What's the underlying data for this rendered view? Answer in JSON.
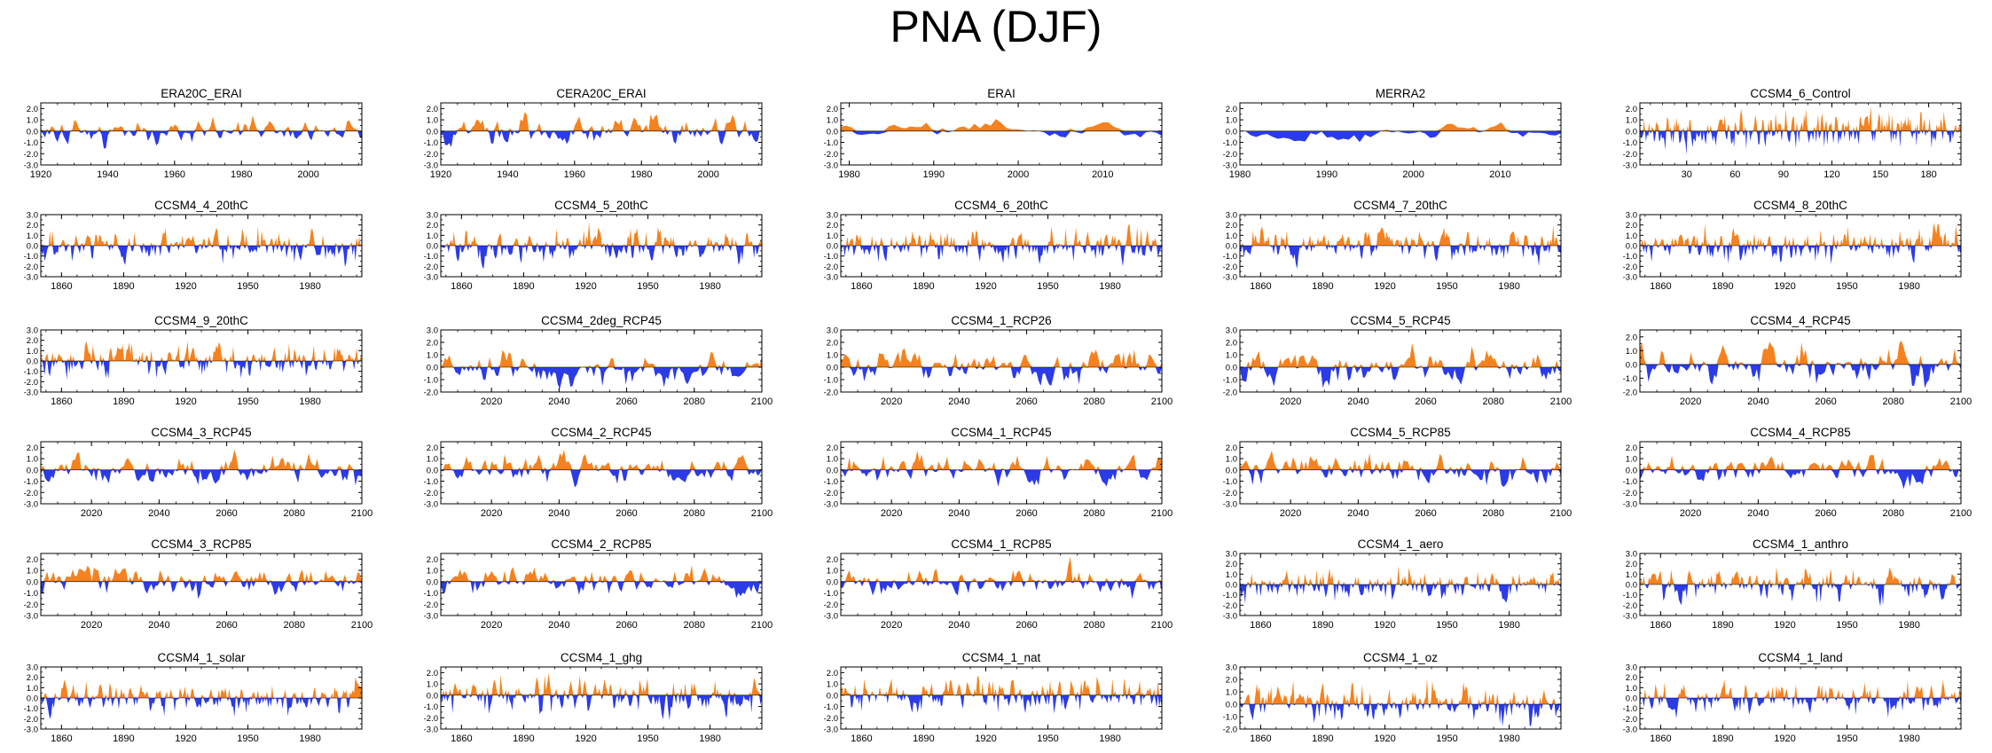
{
  "title": "PNA (DJF)",
  "colors": {
    "positive": "#f5821f",
    "negative": "#2b3be6",
    "axis": "#000000"
  },
  "chart_data": [
    {
      "type": "area",
      "title": "ERA20C_ERAI",
      "xlim": [
        1920,
        2016
      ],
      "xticks": [
        "1920",
        "1940",
        "1960",
        "1980",
        "2000"
      ],
      "yticks": [
        "2.0",
        "1.0",
        "0.0",
        "-1.0",
        "-2.0",
        "-3.0"
      ],
      "ylim": [
        -3,
        2.5
      ],
      "seed": 11,
      "amp": 1.0,
      "smooth": 0.55
    },
    {
      "type": "area",
      "title": "CERA20C_ERAI",
      "xlim": [
        1920,
        2016
      ],
      "xticks": [
        "1920",
        "1940",
        "1960",
        "1980",
        "2000"
      ],
      "yticks": [
        "2.0",
        "1.0",
        "0.0",
        "-1.0",
        "-2.0",
        "-3.0"
      ],
      "ylim": [
        -3,
        2.5
      ],
      "seed": 12,
      "amp": 1.0,
      "smooth": 0.55
    },
    {
      "type": "area",
      "title": "ERAI",
      "xlim": [
        1979,
        2017
      ],
      "xticks": [
        "1980",
        "1990",
        "2000",
        "2010"
      ],
      "yticks": [
        "2.0",
        "1.0",
        "0.0",
        "-1.0",
        "-2.0",
        "-3.0"
      ],
      "ylim": [
        -3,
        2.5
      ],
      "seed": 13,
      "amp": 1.1,
      "smooth": 0.75
    },
    {
      "type": "area",
      "title": "MERRA2",
      "xlim": [
        1980,
        2017
      ],
      "xticks": [
        "1980",
        "1990",
        "2000",
        "2010"
      ],
      "yticks": [
        "2.0",
        "1.0",
        "0.0",
        "-1.0",
        "-2.0",
        "-3.0"
      ],
      "ylim": [
        -3,
        2.5
      ],
      "seed": 14,
      "amp": 1.1,
      "smooth": 0.75
    },
    {
      "type": "area",
      "title": "CCSM4_6_Control",
      "xlim": [
        1,
        200
      ],
      "xticks": [
        "30",
        "60",
        "90",
        "120",
        "150",
        "180"
      ],
      "yticks": [
        "2.0",
        "1.0",
        "0.0",
        "-1.0",
        "-2.0",
        "-3.0"
      ],
      "ylim": [
        -3,
        2.5
      ],
      "seed": 15,
      "amp": 1.0,
      "smooth": 0.3
    },
    {
      "type": "area",
      "title": "CCSM4_4_20thC",
      "xlim": [
        1850,
        2005
      ],
      "xticks": [
        "1860",
        "1890",
        "1920",
        "1950",
        "1980"
      ],
      "yticks": [
        "3.0",
        "2.0",
        "1.0",
        "0.0",
        "-1.0",
        "-2.0",
        "-3.0"
      ],
      "ylim": [
        -3,
        3
      ],
      "seed": 21,
      "amp": 1.0,
      "smooth": 0.35
    },
    {
      "type": "area",
      "title": "CCSM4_5_20thC",
      "xlim": [
        1850,
        2005
      ],
      "xticks": [
        "1860",
        "1890",
        "1920",
        "1950",
        "1980"
      ],
      "yticks": [
        "3.0",
        "2.0",
        "1.0",
        "0.0",
        "-1.0",
        "-2.0",
        "-3.0"
      ],
      "ylim": [
        -3,
        3
      ],
      "seed": 22,
      "amp": 1.0,
      "smooth": 0.35
    },
    {
      "type": "area",
      "title": "CCSM4_6_20thC",
      "xlim": [
        1850,
        2005
      ],
      "xticks": [
        "1860",
        "1890",
        "1920",
        "1950",
        "1980"
      ],
      "yticks": [
        "3.0",
        "2.0",
        "1.0",
        "0.0",
        "-1.0",
        "-2.0",
        "-3.0"
      ],
      "ylim": [
        -3,
        3
      ],
      "seed": 23,
      "amp": 1.1,
      "smooth": 0.35
    },
    {
      "type": "area",
      "title": "CCSM4_7_20thC",
      "xlim": [
        1850,
        2005
      ],
      "xticks": [
        "1860",
        "1890",
        "1920",
        "1950",
        "1980"
      ],
      "yticks": [
        "3.0",
        "2.0",
        "1.0",
        "0.0",
        "-1.0",
        "-2.0",
        "-3.0"
      ],
      "ylim": [
        -3,
        3
      ],
      "seed": 24,
      "amp": 1.0,
      "smooth": 0.35
    },
    {
      "type": "area",
      "title": "CCSM4_8_20thC",
      "xlim": [
        1850,
        2005
      ],
      "xticks": [
        "1860",
        "1890",
        "1920",
        "1950",
        "1980"
      ],
      "yticks": [
        "3.0",
        "2.0",
        "1.0",
        "0.0",
        "-1.0",
        "-2.0",
        "-3.0"
      ],
      "ylim": [
        -3,
        3
      ],
      "seed": 25,
      "amp": 1.0,
      "smooth": 0.35
    },
    {
      "type": "area",
      "title": "CCSM4_9_20thC",
      "xlim": [
        1850,
        2005
      ],
      "xticks": [
        "1860",
        "1890",
        "1920",
        "1950",
        "1980"
      ],
      "yticks": [
        "3.0",
        "2.0",
        "1.0",
        "0.0",
        "-1.0",
        "-2.0",
        "-3.0"
      ],
      "ylim": [
        -3,
        3
      ],
      "seed": 31,
      "amp": 1.0,
      "smooth": 0.35
    },
    {
      "type": "area",
      "title": "CCSM4_2deg_RCP45",
      "xlim": [
        2005,
        2100
      ],
      "xticks": [
        "2020",
        "2040",
        "2060",
        "2080",
        "2100"
      ],
      "yticks": [
        "3.0",
        "2.0",
        "1.0",
        "0.0",
        "-1.0",
        "-2.0"
      ],
      "ylim": [
        -2,
        3
      ],
      "seed": 32,
      "amp": 1.0,
      "smooth": 0.5
    },
    {
      "type": "area",
      "title": "CCSM4_1_RCP26",
      "xlim": [
        2005,
        2100
      ],
      "xticks": [
        "2020",
        "2040",
        "2060",
        "2080",
        "2100"
      ],
      "yticks": [
        "3.0",
        "2.0",
        "1.0",
        "0.0",
        "-1.0",
        "-2.0"
      ],
      "ylim": [
        -2,
        3
      ],
      "seed": 33,
      "amp": 1.0,
      "smooth": 0.5
    },
    {
      "type": "area",
      "title": "CCSM4_5_RCP45",
      "xlim": [
        2005,
        2100
      ],
      "xticks": [
        "2020",
        "2040",
        "2060",
        "2080",
        "2100"
      ],
      "yticks": [
        "3.0",
        "2.0",
        "1.0",
        "0.0",
        "-1.0",
        "-2.0"
      ],
      "ylim": [
        -2,
        3
      ],
      "seed": 34,
      "amp": 1.0,
      "smooth": 0.5
    },
    {
      "type": "area",
      "title": "CCSM4_4_RCP45",
      "xlim": [
        2005,
        2100
      ],
      "xticks": [
        "2020",
        "2040",
        "2060",
        "2080",
        "2100"
      ],
      "yticks": [
        "2.0",
        "1.0",
        "0.0",
        "-1.0",
        "-2.0"
      ],
      "ylim": [
        -2,
        2.5
      ],
      "seed": 35,
      "amp": 1.0,
      "smooth": 0.5
    },
    {
      "type": "area",
      "title": "CCSM4_3_RCP45",
      "xlim": [
        2005,
        2100
      ],
      "xticks": [
        "2020",
        "2040",
        "2060",
        "2080",
        "2100"
      ],
      "yticks": [
        "2.0",
        "1.0",
        "0.0",
        "-1.0",
        "-2.0",
        "-3.0"
      ],
      "ylim": [
        -3,
        2.5
      ],
      "seed": 41,
      "amp": 1.0,
      "smooth": 0.5
    },
    {
      "type": "area",
      "title": "CCSM4_2_RCP45",
      "xlim": [
        2005,
        2100
      ],
      "xticks": [
        "2020",
        "2040",
        "2060",
        "2080",
        "2100"
      ],
      "yticks": [
        "2.0",
        "1.0",
        "0.0",
        "-1.0",
        "-2.0",
        "-3.0"
      ],
      "ylim": [
        -3,
        2.5
      ],
      "seed": 42,
      "amp": 1.0,
      "smooth": 0.5
    },
    {
      "type": "area",
      "title": "CCSM4_1_RCP45",
      "xlim": [
        2005,
        2100
      ],
      "xticks": [
        "2020",
        "2040",
        "2060",
        "2080",
        "2100"
      ],
      "yticks": [
        "2.0",
        "1.0",
        "0.0",
        "-1.0",
        "-2.0",
        "-3.0"
      ],
      "ylim": [
        -3,
        2.5
      ],
      "seed": 43,
      "amp": 1.0,
      "smooth": 0.5
    },
    {
      "type": "area",
      "title": "CCSM4_5_RCP85",
      "xlim": [
        2005,
        2100
      ],
      "xticks": [
        "2020",
        "2040",
        "2060",
        "2080",
        "2100"
      ],
      "yticks": [
        "2.0",
        "1.0",
        "0.0",
        "-1.0",
        "-2.0",
        "-3.0"
      ],
      "ylim": [
        -3,
        2.5
      ],
      "seed": 44,
      "amp": 1.1,
      "smooth": 0.5
    },
    {
      "type": "area",
      "title": "CCSM4_4_RCP85",
      "xlim": [
        2005,
        2100
      ],
      "xticks": [
        "2020",
        "2040",
        "2060",
        "2080",
        "2100"
      ],
      "yticks": [
        "2.0",
        "1.0",
        "0.0",
        "-1.0",
        "-2.0",
        "-3.0"
      ],
      "ylim": [
        -3,
        2.5
      ],
      "seed": 45,
      "amp": 1.0,
      "smooth": 0.5
    },
    {
      "type": "area",
      "title": "CCSM4_3_RCP85",
      "xlim": [
        2005,
        2100
      ],
      "xticks": [
        "2020",
        "2040",
        "2060",
        "2080",
        "2100"
      ],
      "yticks": [
        "2.0",
        "1.0",
        "0.0",
        "-1.0",
        "-2.0",
        "-3.0"
      ],
      "ylim": [
        -3,
        2.5
      ],
      "seed": 51,
      "amp": 1.0,
      "smooth": 0.5
    },
    {
      "type": "area",
      "title": "CCSM4_2_RCP85",
      "xlim": [
        2005,
        2100
      ],
      "xticks": [
        "2020",
        "2040",
        "2060",
        "2080",
        "2100"
      ],
      "yticks": [
        "2.0",
        "1.0",
        "0.0",
        "-1.0",
        "-2.0",
        "-3.0"
      ],
      "ylim": [
        -3,
        2.5
      ],
      "seed": 52,
      "amp": 1.0,
      "smooth": 0.5
    },
    {
      "type": "area",
      "title": "CCSM4_1_RCP85",
      "xlim": [
        2005,
        2100
      ],
      "xticks": [
        "2020",
        "2040",
        "2060",
        "2080",
        "2100"
      ],
      "yticks": [
        "2.0",
        "1.0",
        "0.0",
        "-1.0",
        "-2.0",
        "-3.0"
      ],
      "ylim": [
        -3,
        2.5
      ],
      "seed": 53,
      "amp": 1.0,
      "smooth": 0.5
    },
    {
      "type": "area",
      "title": "CCSM4_1_aero",
      "xlim": [
        1850,
        2005
      ],
      "xticks": [
        "1860",
        "1890",
        "1920",
        "1950",
        "1980"
      ],
      "yticks": [
        "3.0",
        "2.0",
        "1.0",
        "0.0",
        "-1.0",
        "-2.0",
        "-3.0"
      ],
      "ylim": [
        -3,
        3
      ],
      "seed": 54,
      "amp": 1.0,
      "smooth": 0.35
    },
    {
      "type": "area",
      "title": "CCSM4_1_anthro",
      "xlim": [
        1850,
        2005
      ],
      "xticks": [
        "1860",
        "1890",
        "1920",
        "1950",
        "1980"
      ],
      "yticks": [
        "3.0",
        "2.0",
        "1.0",
        "0.0",
        "-1.0",
        "-2.0",
        "-3.0"
      ],
      "ylim": [
        -3,
        3
      ],
      "seed": 55,
      "amp": 1.0,
      "smooth": 0.35
    },
    {
      "type": "area",
      "title": "CCSM4_1_solar",
      "xlim": [
        1850,
        2005
      ],
      "xticks": [
        "1860",
        "1890",
        "1920",
        "1950",
        "1980"
      ],
      "yticks": [
        "3.0",
        "2.0",
        "1.0",
        "0.0",
        "-1.0",
        "-2.0",
        "-3.0"
      ],
      "ylim": [
        -3,
        3
      ],
      "seed": 61,
      "amp": 1.0,
      "smooth": 0.35
    },
    {
      "type": "area",
      "title": "CCSM4_1_ghg",
      "xlim": [
        1850,
        2005
      ],
      "xticks": [
        "1860",
        "1890",
        "1920",
        "1950",
        "1980"
      ],
      "yticks": [
        "2.0",
        "1.0",
        "0.0",
        "-1.0",
        "-2.0",
        "-3.0"
      ],
      "ylim": [
        -3,
        2.5
      ],
      "seed": 62,
      "amp": 1.0,
      "smooth": 0.35
    },
    {
      "type": "area",
      "title": "CCSM4_1_nat",
      "xlim": [
        1850,
        2005
      ],
      "xticks": [
        "1860",
        "1890",
        "1920",
        "1950",
        "1980"
      ],
      "yticks": [
        "2.0",
        "1.0",
        "0.0",
        "-1.0",
        "-2.0",
        "-3.0"
      ],
      "ylim": [
        -3,
        2.5
      ],
      "seed": 63,
      "amp": 1.0,
      "smooth": 0.35
    },
    {
      "type": "area",
      "title": "CCSM4_1_oz",
      "xlim": [
        1850,
        2005
      ],
      "xticks": [
        "1860",
        "1890",
        "1920",
        "1950",
        "1980"
      ],
      "yticks": [
        "3.0",
        "2.0",
        "1.0",
        "0.0",
        "-1.0",
        "-2.0"
      ],
      "ylim": [
        -2,
        3
      ],
      "seed": 64,
      "amp": 1.0,
      "smooth": 0.35
    },
    {
      "type": "area",
      "title": "CCSM4_1_land",
      "xlim": [
        1850,
        2005
      ],
      "xticks": [
        "1860",
        "1890",
        "1920",
        "1950",
        "1980"
      ],
      "yticks": [
        "3.0",
        "2.0",
        "1.0",
        "0.0",
        "-1.0",
        "-2.0",
        "-3.0"
      ],
      "ylim": [
        -3,
        3
      ],
      "seed": 65,
      "amp": 1.0,
      "smooth": 0.35
    }
  ]
}
